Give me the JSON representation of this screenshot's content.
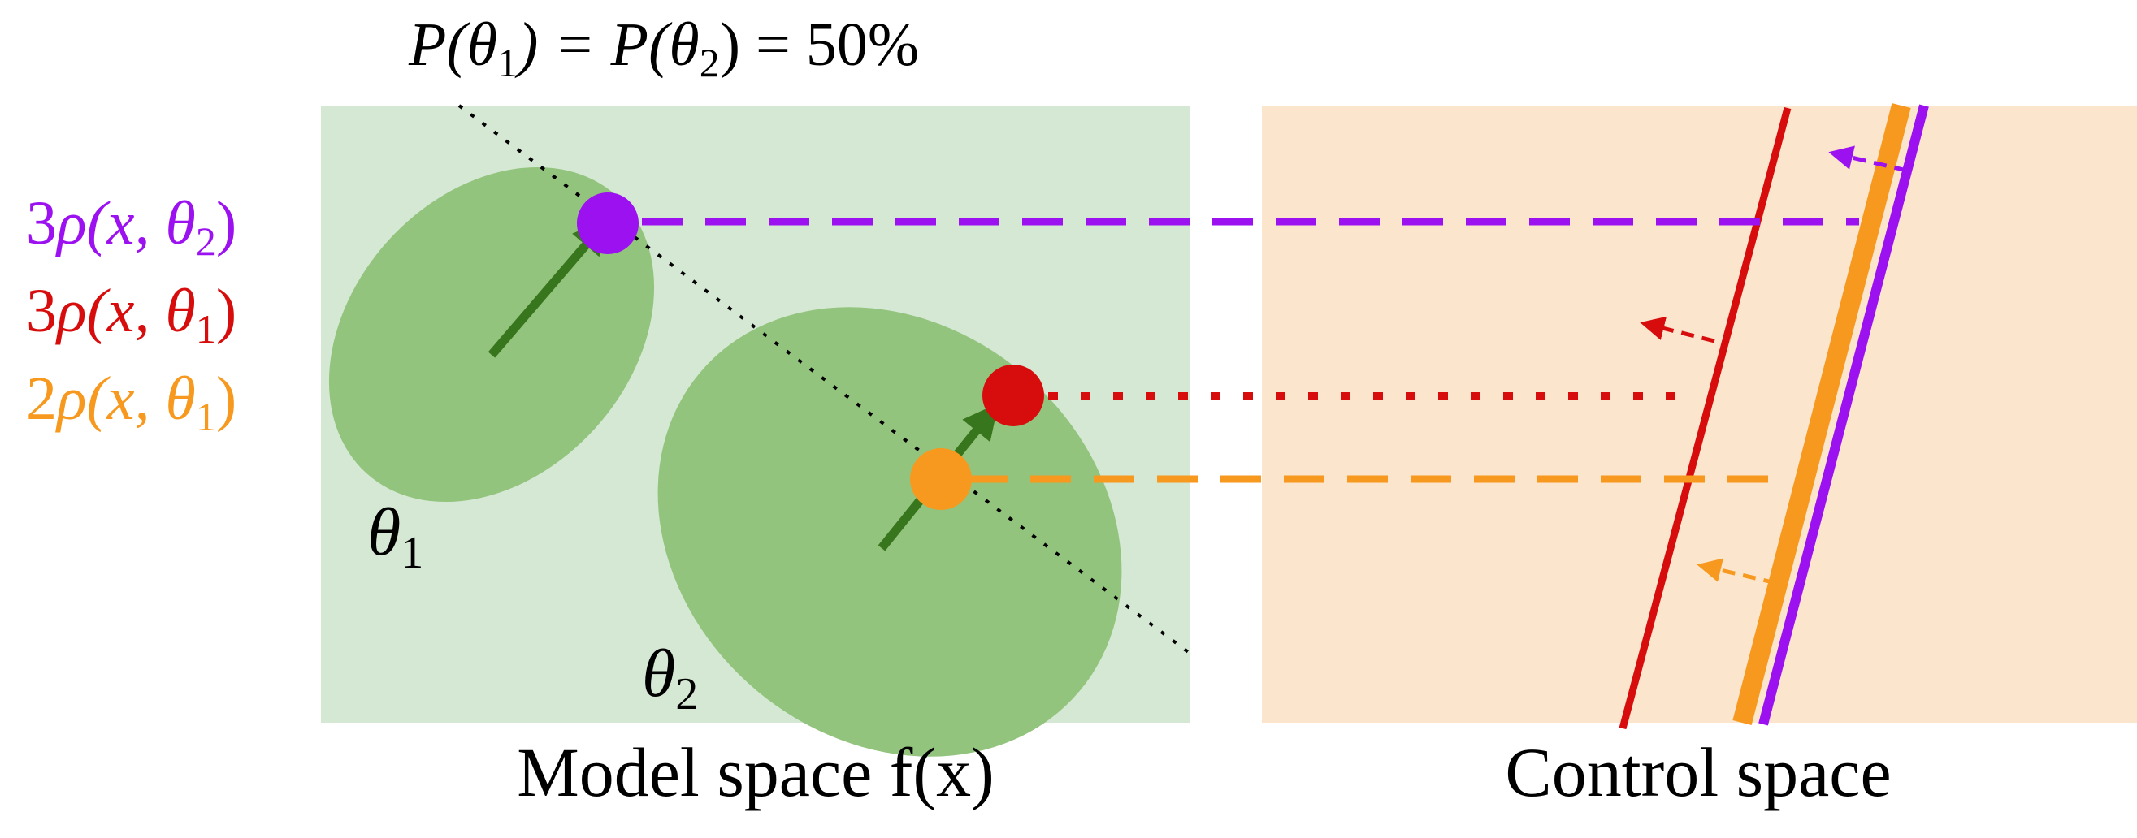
{
  "title": {
    "prefix": "P(",
    "theta1": "θ",
    "sub1": "1",
    "middle": ") = P(",
    "theta2": "θ",
    "sub2": "2",
    "suffix": ") = 50%"
  },
  "legend": [
    {
      "coef": "3",
      "rho": "ρ",
      "args": "(x, ",
      "theta": "θ",
      "sub": "2",
      "close": ")",
      "color": "#9B11F0"
    },
    {
      "coef": "3",
      "rho": "ρ",
      "args": "(x, ",
      "theta": "θ",
      "sub": "1",
      "close": ")",
      "color": "#D70D0D"
    },
    {
      "coef": "2",
      "rho": "ρ",
      "args": "(x, ",
      "theta": "θ",
      "sub": "1",
      "close": ")",
      "color": "#F7991F"
    }
  ],
  "model_panel": {
    "caption": "Model space f(x)",
    "theta1": {
      "theta": "θ",
      "sub": "1"
    },
    "theta2": {
      "theta": "θ",
      "sub": "2"
    }
  },
  "control_panel": {
    "caption": "Control space"
  },
  "colors": {
    "model_bg": "#D5E8D4",
    "ellipse": "#93C47D",
    "arrow": "#38761D",
    "control_bg": "#FCE5CD",
    "purple": "#9B11F0",
    "red": "#D70D0D",
    "orange": "#F7991F",
    "boundary": "#000000"
  }
}
